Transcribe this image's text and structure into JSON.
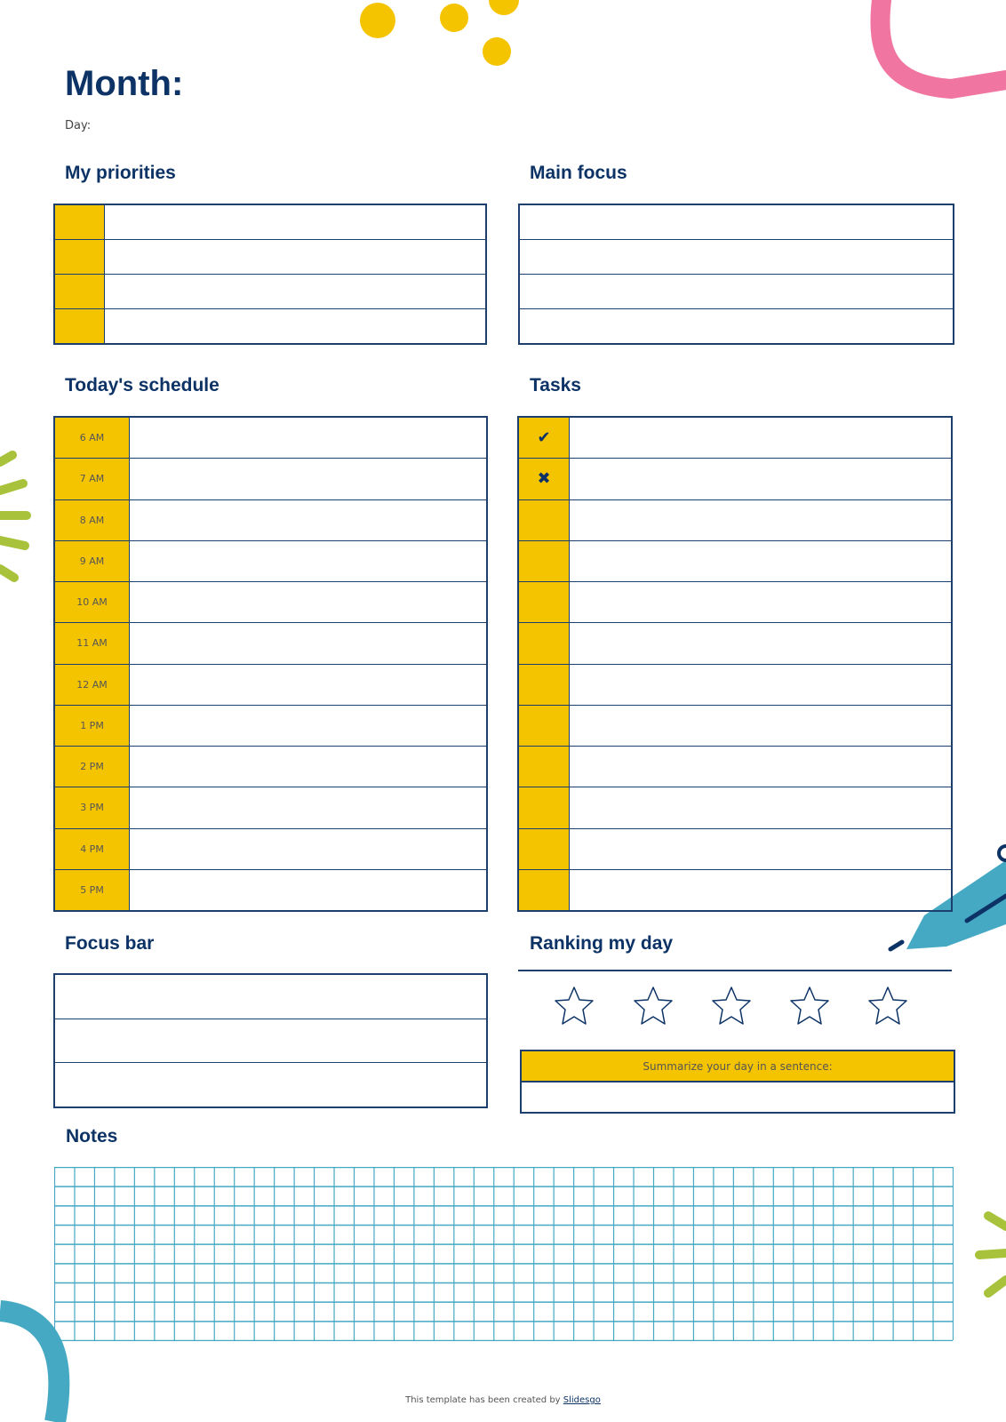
{
  "colors": {
    "navy": "#0d3366",
    "yellow": "#f5c400",
    "teal": "#45a9c4",
    "pink": "#f075a0",
    "green": "#a9c23b"
  },
  "header": {
    "month_label": "Month:",
    "day_label": "Day:"
  },
  "priorities": {
    "title": "My priorities",
    "rows": 4
  },
  "main_focus": {
    "title": "Main focus",
    "rows": 4
  },
  "schedule": {
    "title": "Today's schedule",
    "times": [
      "6 AM",
      "7 AM",
      "8 AM",
      "9 AM",
      "10 AM",
      "11 AM",
      "12 AM",
      "1 PM",
      "2 PM",
      "3 PM",
      "4 PM",
      "5 PM"
    ]
  },
  "tasks": {
    "title": "Tasks",
    "markers": [
      "✔",
      "✖",
      "",
      "",
      "",
      "",
      "",
      "",
      "",
      "",
      "",
      ""
    ],
    "marker_icons": [
      "check-icon",
      "cross-icon"
    ]
  },
  "focus_bar": {
    "title": "Focus bar",
    "rows": 3
  },
  "ranking": {
    "title": "Ranking my day",
    "stars_total": 5,
    "stars_filled": 0,
    "summary_label": "Summarize your day in a sentence:"
  },
  "notes": {
    "title": "Notes",
    "grid_cols": 45,
    "grid_rows": 9
  },
  "footer": {
    "text": "This template has been created by ",
    "link": "Slidesgo"
  }
}
